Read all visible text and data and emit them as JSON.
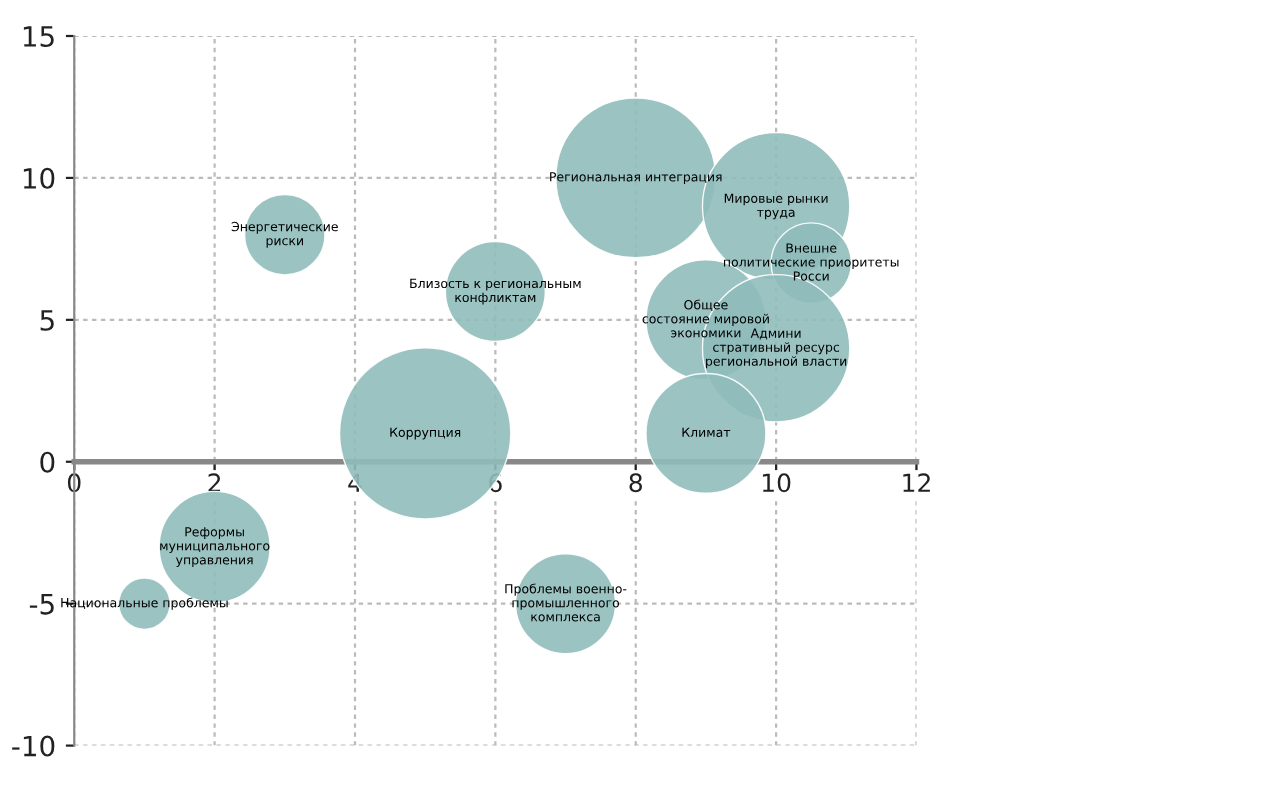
{
  "chart_data": {
    "type": "bubble",
    "x": [
      3,
      6,
      5,
      8,
      10,
      9,
      10.5,
      10,
      9,
      2,
      1,
      7
    ],
    "values": [
      8,
      6,
      1,
      10,
      9,
      5,
      7,
      4,
      1,
      -3,
      -5,
      -5
    ],
    "sizes": [
      0.22,
      0.34,
      1,
      0.87,
      0.74,
      0.49,
      0.22,
      0.74,
      0.49,
      0.42,
      0.09,
      0.34
    ],
    "color": "#8fbdbb",
    "annotations": [
      {
        "text": "Энергетические\nриски",
        "x": 3,
        "y": 8
      },
      {
        "text": "Близость к региональным\nконфликтам",
        "x": 6,
        "y": 6
      },
      {
        "text": "Коррупция",
        "x": 5,
        "y": 1
      },
      {
        "text": "Региональная интеграция",
        "x": 8,
        "y": 10
      },
      {
        "text": "Мировые рынки\nтруда",
        "x": 10,
        "y": 9
      },
      {
        "text": "Общее\nсостояние мировой\nэкономики",
        "x": 9,
        "y": 5
      },
      {
        "text": "Внешне\nполитические приоритеты\nРосси",
        "x": 10.5,
        "y": 7
      },
      {
        "text": "Админи\nстративный ресурс\nрегиональной власти",
        "x": 10,
        "y": 4
      },
      {
        "text": "Климат",
        "x": 9,
        "y": 1
      },
      {
        "text": "Реформы\nмуниципального\nуправления",
        "x": 2,
        "y": -3
      },
      {
        "text": "Национальные проблемы",
        "x": 1,
        "y": -5
      },
      {
        "text": "Проблемы военно-\nпромышленного\nкомплекса",
        "x": 7,
        "y": -5
      }
    ],
    "xlim": [
      0,
      12
    ],
    "xticks": [
      0,
      2,
      4,
      6,
      8,
      10,
      12
    ],
    "ylim": [
      -10,
      15
    ],
    "yticks": [
      -10,
      -5,
      0,
      5,
      10,
      15
    ],
    "grid": true
  }
}
